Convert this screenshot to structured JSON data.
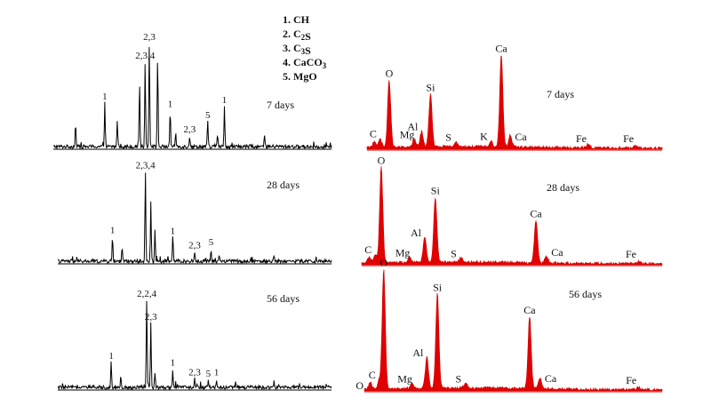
{
  "legend": {
    "items": [
      {
        "num": "1.",
        "formula": [
          {
            "t": "CH"
          }
        ]
      },
      {
        "num": "2.",
        "formula": [
          {
            "t": "C"
          },
          {
            "t": "2",
            "sub": true
          },
          {
            "t": "S"
          }
        ]
      },
      {
        "num": "3.",
        "formula": [
          {
            "t": "C"
          },
          {
            "t": "3",
            "sub": true
          },
          {
            "t": "S"
          }
        ]
      },
      {
        "num": "4.",
        "formula": [
          {
            "t": "CaCO"
          },
          {
            "t": "3",
            "sub": true
          }
        ]
      },
      {
        "num": "5.",
        "formula": [
          {
            "t": "MgO"
          }
        ]
      }
    ]
  },
  "chart_data": [
    {
      "type": "line",
      "panel": "xrd-7-days",
      "age_label": "7 days",
      "peaks": [
        {
          "x": 0.08,
          "h": 0.22,
          "label": ""
        },
        {
          "x": 0.185,
          "h": 0.4,
          "label": "1"
        },
        {
          "x": 0.23,
          "h": 0.25,
          "label": ""
        },
        {
          "x": 0.31,
          "h": 0.6,
          "label": ""
        },
        {
          "x": 0.33,
          "h": 0.78,
          "label": "2,3,4"
        },
        {
          "x": 0.345,
          "h": 0.95,
          "label": "2,3"
        },
        {
          "x": 0.375,
          "h": 0.82,
          "label": ""
        },
        {
          "x": 0.42,
          "h": 0.33,
          "label": "1"
        },
        {
          "x": 0.44,
          "h": 0.12,
          "label": ""
        },
        {
          "x": 0.49,
          "h": 0.1,
          "label": "2,3"
        },
        {
          "x": 0.555,
          "h": 0.23,
          "label": "5"
        },
        {
          "x": 0.59,
          "h": 0.11,
          "label": ""
        },
        {
          "x": 0.615,
          "h": 0.37,
          "label": "1"
        },
        {
          "x": 0.76,
          "h": 0.09,
          "label": ""
        }
      ]
    },
    {
      "type": "line",
      "panel": "xrd-28-days",
      "age_label": "28 days",
      "peaks": [
        {
          "x": 0.2,
          "h": 0.26,
          "label": "1"
        },
        {
          "x": 0.235,
          "h": 0.15,
          "label": ""
        },
        {
          "x": 0.32,
          "h": 0.95,
          "label": "2,3,4"
        },
        {
          "x": 0.34,
          "h": 0.62,
          "label": ""
        },
        {
          "x": 0.355,
          "h": 0.35,
          "label": ""
        },
        {
          "x": 0.42,
          "h": 0.25,
          "label": "1"
        },
        {
          "x": 0.5,
          "h": 0.1,
          "label": "2,3"
        },
        {
          "x": 0.56,
          "h": 0.13,
          "label": "5"
        },
        {
          "x": 0.59,
          "h": 0.07,
          "label": ""
        },
        {
          "x": 0.79,
          "h": 0.07,
          "label": ""
        }
      ]
    },
    {
      "type": "line",
      "panel": "xrd-56-days",
      "age_label": "56 days",
      "peaks": [
        {
          "x": 0.195,
          "h": 0.27,
          "label": "1"
        },
        {
          "x": 0.23,
          "h": 0.12,
          "label": ""
        },
        {
          "x": 0.325,
          "h": 0.95,
          "label": "2,2,4"
        },
        {
          "x": 0.34,
          "h": 0.7,
          "label": "2,3"
        },
        {
          "x": 0.355,
          "h": 0.17,
          "label": ""
        },
        {
          "x": 0.42,
          "h": 0.2,
          "label": "1"
        },
        {
          "x": 0.5,
          "h": 0.09,
          "label": "2,3"
        },
        {
          "x": 0.55,
          "h": 0.08,
          "label": "5"
        },
        {
          "x": 0.58,
          "h": 0.09,
          "label": "1"
        },
        {
          "x": 0.65,
          "h": 0.06,
          "label": ""
        },
        {
          "x": 0.79,
          "h": 0.06,
          "label": ""
        }
      ]
    },
    {
      "type": "area",
      "panel": "eds-7-days",
      "age_label": "7 days",
      "peaks": [
        {
          "x": 0.025,
          "h": 0.07,
          "label": ""
        },
        {
          "x": 0.045,
          "h": 0.09,
          "label": "C"
        },
        {
          "x": 0.075,
          "h": 0.7,
          "label": "O"
        },
        {
          "x": 0.16,
          "h": 0.08,
          "label": "Mg"
        },
        {
          "x": 0.185,
          "h": 0.16,
          "label": "Al"
        },
        {
          "x": 0.215,
          "h": 0.55,
          "label": "Si"
        },
        {
          "x": 0.3,
          "h": 0.05,
          "label": "S"
        },
        {
          "x": 0.42,
          "h": 0.06,
          "label": "K"
        },
        {
          "x": 0.455,
          "h": 0.96,
          "label": "Ca"
        },
        {
          "x": 0.485,
          "h": 0.12,
          "label": "Ca"
        },
        {
          "x": 0.75,
          "h": 0.04,
          "label": "Fe"
        },
        {
          "x": 0.91,
          "h": 0.02,
          "label": "Fe"
        }
      ]
    },
    {
      "type": "area",
      "panel": "eds-28-days",
      "age_label": "28 days",
      "peaks": [
        {
          "x": 0.025,
          "h": 0.06,
          "label": ""
        },
        {
          "x": 0.045,
          "h": 0.08,
          "label": "C"
        },
        {
          "x": 0.065,
          "h": 0.95,
          "label": "O"
        },
        {
          "x": 0.16,
          "h": 0.05,
          "label": "Mg"
        },
        {
          "x": 0.21,
          "h": 0.25,
          "label": "Al"
        },
        {
          "x": 0.245,
          "h": 0.65,
          "label": "Si"
        },
        {
          "x": 0.33,
          "h": 0.04,
          "label": "S"
        },
        {
          "x": 0.58,
          "h": 0.42,
          "label": "Ca"
        },
        {
          "x": 0.615,
          "h": 0.06,
          "label": "Ca"
        },
        {
          "x": 0.92,
          "h": 0.02,
          "label": "Fe"
        }
      ]
    },
    {
      "type": "area",
      "panel": "eds-56-days",
      "age_label": "56 days",
      "peaks": [
        {
          "x": 0.02,
          "h": 0.05,
          "label": "O"
        },
        {
          "x": 0.05,
          "h": 0.07,
          "label": "C"
        },
        {
          "x": 0.065,
          "h": 0.96,
          "label": "O"
        },
        {
          "x": 0.16,
          "h": 0.04,
          "label": "Mg"
        },
        {
          "x": 0.21,
          "h": 0.25,
          "label": "Al"
        },
        {
          "x": 0.245,
          "h": 0.76,
          "label": "Si"
        },
        {
          "x": 0.34,
          "h": 0.04,
          "label": "S"
        },
        {
          "x": 0.555,
          "h": 0.58,
          "label": "Ca"
        },
        {
          "x": 0.59,
          "h": 0.09,
          "label": "Ca"
        },
        {
          "x": 0.92,
          "h": 0.02,
          "label": "Fe"
        }
      ]
    }
  ]
}
